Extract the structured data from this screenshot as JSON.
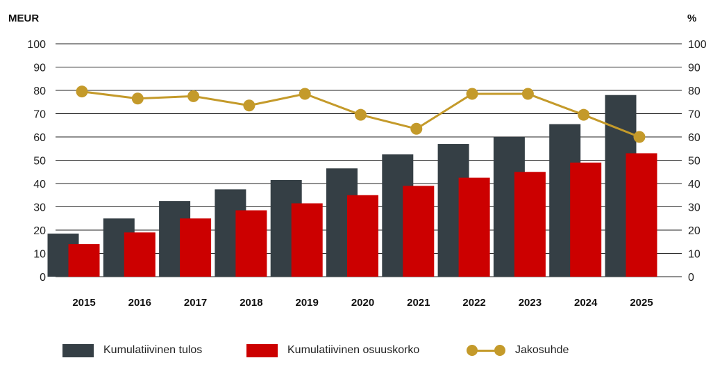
{
  "chart_data": {
    "type": "bar",
    "left_axis_unit": "MEUR",
    "right_axis_unit": "%",
    "categories": [
      "2015",
      "2016",
      "2017",
      "2018",
      "2019",
      "2020",
      "2021",
      "2022",
      "2023",
      "2024",
      "2025"
    ],
    "ylim": [
      0,
      100
    ],
    "yticks": [
      0,
      10,
      20,
      30,
      40,
      50,
      60,
      70,
      80,
      90,
      100
    ],
    "y2lim": [
      0,
      100
    ],
    "grid": true,
    "legend_position": "bottom",
    "series": [
      {
        "name": "Kumulatiivinen tulos",
        "type": "bar",
        "color": "#353f45",
        "values": [
          18.5,
          25,
          32.5,
          37.5,
          41.5,
          46.5,
          52.5,
          57,
          60,
          65.5,
          78
        ]
      },
      {
        "name": "Kumulatiivinen osuuskorko",
        "type": "bar",
        "color": "#cc0000",
        "values": [
          14,
          19,
          25,
          28.5,
          31.5,
          35,
          39,
          42.5,
          45,
          49,
          53
        ]
      },
      {
        "name": "Jakosuhde",
        "type": "line",
        "axis": "right",
        "color": "#c49a2a",
        "values": [
          79.5,
          76.5,
          77.5,
          73.5,
          78.5,
          69.5,
          63.5,
          78.5,
          78.5,
          69.5,
          60
        ]
      }
    ]
  }
}
